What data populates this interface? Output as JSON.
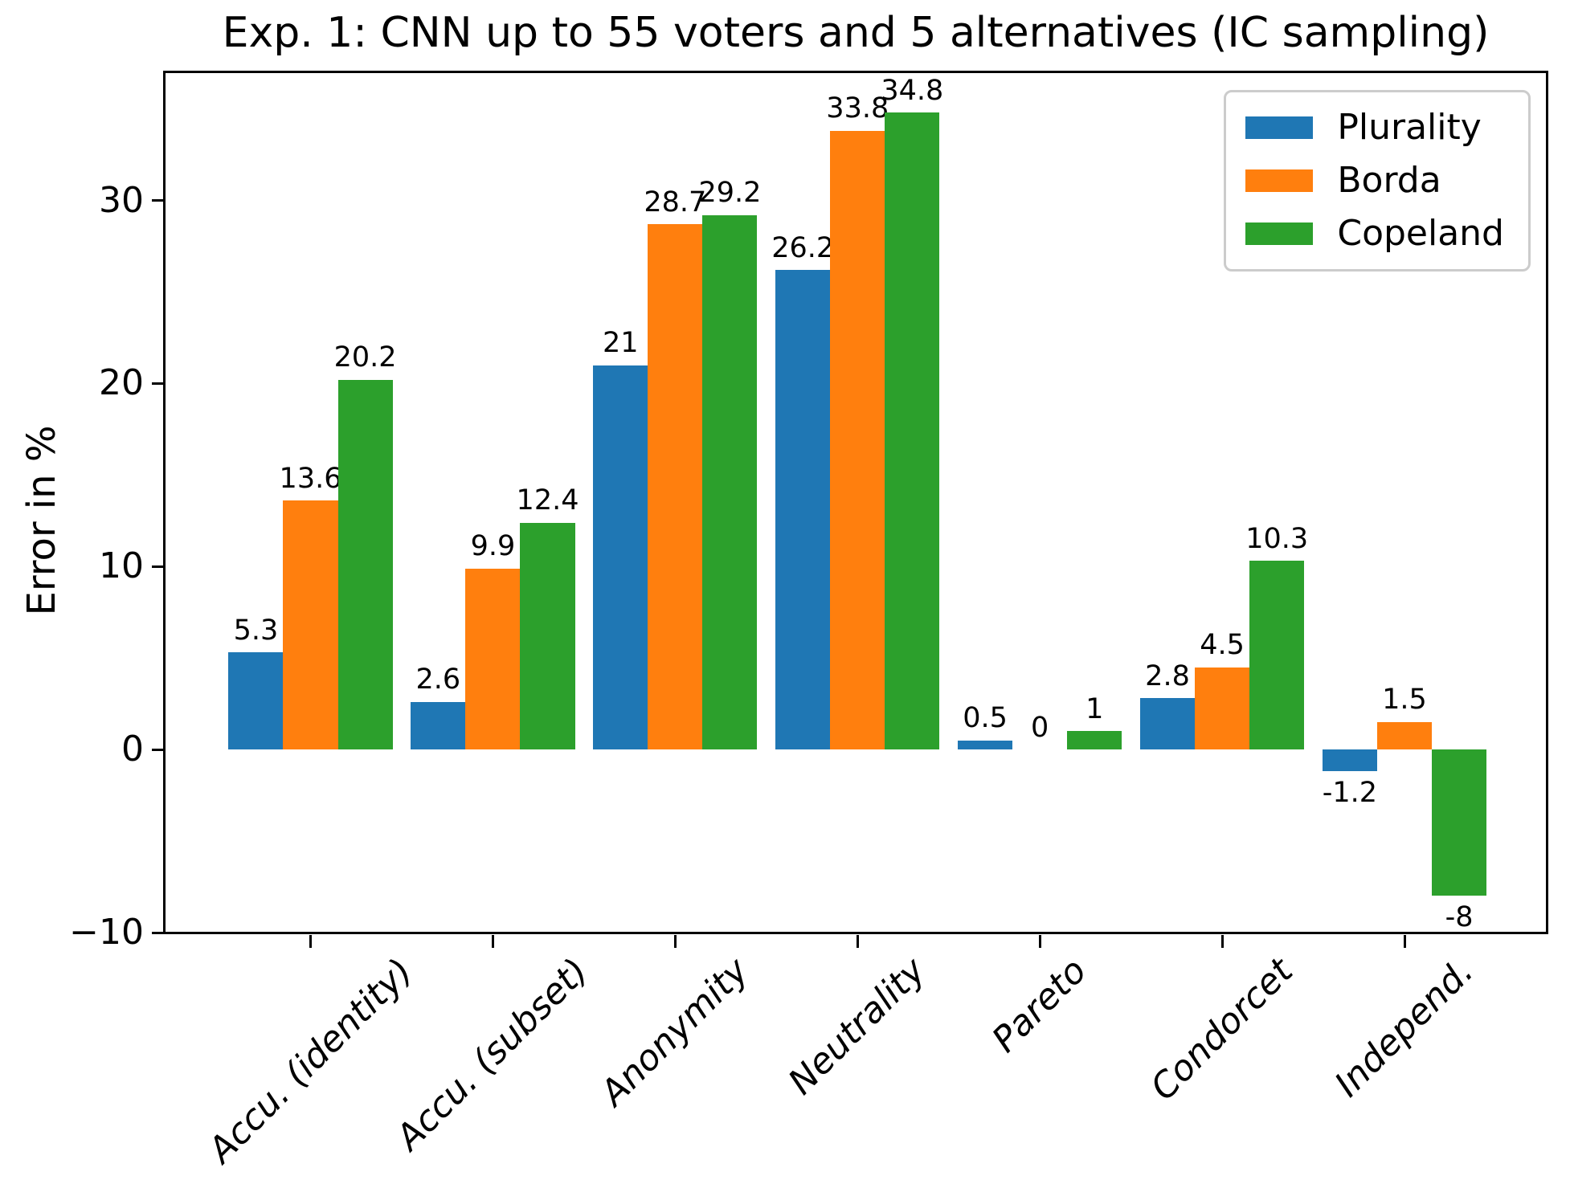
{
  "chart_data": {
    "type": "bar",
    "title": "Exp. 1: CNN up to 55 voters and 5 alternatives (IC sampling)",
    "ylabel": "Error in %",
    "xlabel": "",
    "categories": [
      "Accu. (identity)",
      "Accu. (subset)",
      "Anonymity",
      "Neutrality",
      "Pareto",
      "Condorcet",
      "Independ."
    ],
    "series": [
      {
        "name": "Plurality",
        "color": "#1f77b4",
        "values": [
          5.3,
          2.6,
          21,
          26.2,
          0.5,
          2.8,
          -1.2
        ],
        "labels": [
          "5.3",
          "2.6",
          "21",
          "26.2",
          "0.5",
          "2.8",
          "-1.2"
        ]
      },
      {
        "name": "Borda",
        "color": "#ff7f0e",
        "values": [
          13.6,
          9.9,
          28.7,
          33.8,
          0,
          4.5,
          1.5
        ],
        "labels": [
          "13.6",
          "9.9",
          "28.7",
          "33.8",
          "0",
          "4.5",
          "1.5"
        ]
      },
      {
        "name": "Copeland",
        "color": "#2ca02c",
        "values": [
          20.2,
          12.4,
          29.2,
          34.8,
          1,
          10.3,
          -8
        ],
        "labels": [
          "20.2",
          "12.4",
          "29.2",
          "34.8",
          "1",
          "10.3",
          "-8"
        ]
      }
    ],
    "yticks": [
      {
        "value": -10,
        "label": "−10"
      },
      {
        "value": 0,
        "label": "0"
      },
      {
        "value": 10,
        "label": "10"
      },
      {
        "value": 20,
        "label": "20"
      },
      {
        "value": 30,
        "label": "30"
      }
    ],
    "ylim": [
      -10,
      37
    ],
    "grid": false,
    "legend_position": "upper right"
  }
}
